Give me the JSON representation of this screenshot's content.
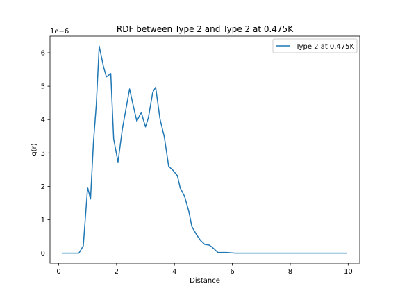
{
  "chart_data": {
    "type": "line",
    "title": "RDF between Type 2 and Type 2 at 0.475K",
    "xlabel": "Distance",
    "ylabel": "g(r)",
    "offset_label": "1e−6",
    "y_scale_factor": 1e-06,
    "xlim": [
      -0.3,
      10.4
    ],
    "ylim": [
      -0.3,
      6.5
    ],
    "x_ticks": [
      0,
      2,
      4,
      6,
      8,
      10
    ],
    "x_tick_labels": [
      "0",
      "2",
      "4",
      "6",
      "8",
      "10"
    ],
    "y_ticks": [
      0,
      1,
      2,
      3,
      4,
      5,
      6
    ],
    "y_tick_labels": [
      "0",
      "1",
      "2",
      "3",
      "4",
      "5",
      "6"
    ],
    "grid": false,
    "legend_position": "top-right",
    "series": [
      {
        "name": "Type 2 at 0.475K",
        "color": "#1f77b4",
        "x": [
          0.15,
          0.35,
          0.55,
          0.7,
          0.85,
          1.0,
          1.1,
          1.2,
          1.3,
          1.4,
          1.55,
          1.65,
          1.8,
          1.9,
          2.05,
          2.2,
          2.3,
          2.45,
          2.55,
          2.7,
          2.85,
          3.0,
          3.1,
          3.25,
          3.35,
          3.5,
          3.65,
          3.8,
          3.95,
          4.1,
          4.2,
          4.35,
          4.5,
          4.6,
          4.75,
          4.9,
          5.05,
          5.2,
          5.3,
          5.5,
          5.8,
          6.1,
          6.5,
          7.0,
          7.5,
          8.0,
          8.5,
          9.0,
          9.5,
          9.95
        ],
        "y": [
          0.0,
          0.0,
          0.0,
          0.0,
          0.22,
          1.97,
          1.62,
          3.3,
          4.45,
          6.2,
          5.58,
          5.28,
          5.38,
          3.42,
          2.73,
          3.72,
          4.2,
          4.92,
          4.52,
          3.95,
          4.22,
          3.78,
          4.06,
          4.82,
          4.97,
          4.02,
          3.48,
          2.6,
          2.48,
          2.32,
          1.95,
          1.7,
          1.24,
          0.8,
          0.57,
          0.38,
          0.26,
          0.24,
          0.18,
          0.02,
          0.02,
          0.0,
          0.0,
          0.0,
          0.0,
          0.0,
          0.0,
          0.0,
          0.0,
          0.0
        ]
      }
    ]
  }
}
